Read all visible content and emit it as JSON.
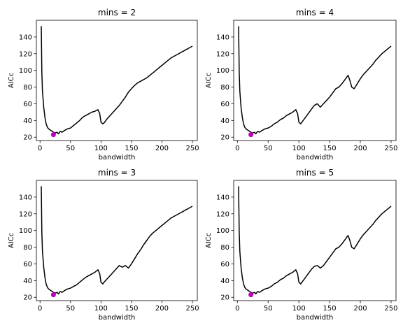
{
  "chart_data": [
    {
      "type": "line",
      "title": "mins = 2",
      "xlabel": "bandwidth",
      "ylabel": "AICc",
      "xlim": [
        -6,
        258
      ],
      "ylim": [
        16,
        160
      ],
      "xticks": [
        0,
        50,
        100,
        150,
        200,
        250
      ],
      "yticks": [
        20,
        40,
        60,
        80,
        100,
        120,
        140
      ],
      "grid": false,
      "series": [
        {
          "color": "#000000",
          "x": [
            2,
            3,
            4,
            6,
            8,
            10,
            12,
            14,
            16,
            18,
            20,
            22,
            25,
            28,
            30,
            33,
            36,
            40,
            45,
            50,
            55,
            60,
            65,
            70,
            75,
            80,
            85,
            90,
            95,
            98,
            100,
            103,
            105,
            110,
            115,
            120,
            125,
            130,
            135,
            140,
            145,
            150,
            155,
            160,
            165,
            170,
            175,
            180,
            185,
            190,
            195,
            200,
            205,
            210,
            215,
            220,
            225,
            230,
            235,
            240,
            245,
            250
          ],
          "y": [
            153,
            98,
            75,
            56,
            44,
            36,
            32,
            30,
            29,
            28,
            27,
            26,
            25,
            26,
            24,
            27,
            26,
            28,
            30,
            31,
            34,
            37,
            40,
            44,
            46,
            48,
            50,
            51,
            53,
            48,
            38,
            36,
            37,
            42,
            46,
            50,
            54,
            58,
            63,
            68,
            74,
            78,
            82,
            85,
            87,
            89,
            91,
            94,
            97,
            100,
            103,
            106,
            109,
            112,
            115,
            117,
            119,
            121,
            123,
            125,
            127,
            129
          ]
        }
      ],
      "markers": [
        {
          "x": 22,
          "y": 23,
          "color": "#bf00bf"
        }
      ]
    },
    {
      "type": "line",
      "title": "mins = 4",
      "xlabel": "bandwidth",
      "ylabel": "AICc",
      "xlim": [
        -6,
        258
      ],
      "ylim": [
        16,
        160
      ],
      "xticks": [
        0,
        50,
        100,
        150,
        200,
        250
      ],
      "yticks": [
        20,
        40,
        60,
        80,
        100,
        120,
        140
      ],
      "grid": false,
      "series": [
        {
          "color": "#000000",
          "x": [
            2,
            3,
            4,
            6,
            8,
            10,
            12,
            14,
            16,
            18,
            20,
            22,
            25,
            28,
            30,
            33,
            36,
            40,
            45,
            50,
            55,
            60,
            65,
            70,
            75,
            80,
            85,
            90,
            95,
            98,
            100,
            103,
            105,
            110,
            115,
            120,
            125,
            130,
            135,
            140,
            145,
            150,
            155,
            160,
            165,
            170,
            175,
            178,
            180,
            183,
            186,
            190,
            195,
            200,
            205,
            210,
            215,
            220,
            225,
            230,
            235,
            240,
            245,
            250
          ],
          "y": [
            153,
            98,
            75,
            56,
            44,
            36,
            32,
            30,
            29,
            28,
            27,
            26,
            25,
            26,
            24,
            27,
            26,
            28,
            30,
            31,
            33,
            36,
            38,
            41,
            43,
            46,
            48,
            50,
            53,
            48,
            38,
            36,
            38,
            43,
            48,
            53,
            58,
            60,
            56,
            60,
            64,
            68,
            73,
            78,
            80,
            84,
            89,
            92,
            94,
            88,
            80,
            78,
            84,
            90,
            95,
            99,
            103,
            107,
            112,
            116,
            120,
            123,
            126,
            129
          ]
        }
      ],
      "markers": [
        {
          "x": 22,
          "y": 23,
          "color": "#bf00bf"
        }
      ]
    },
    {
      "type": "line",
      "title": "mins = 3",
      "xlabel": "bandwidth",
      "ylabel": "AICc",
      "xlim": [
        -6,
        258
      ],
      "ylim": [
        16,
        160
      ],
      "xticks": [
        0,
        50,
        100,
        150,
        200,
        250
      ],
      "yticks": [
        20,
        40,
        60,
        80,
        100,
        120,
        140
      ],
      "grid": false,
      "series": [
        {
          "color": "#000000",
          "x": [
            2,
            3,
            4,
            6,
            8,
            10,
            12,
            14,
            16,
            18,
            20,
            22,
            25,
            28,
            30,
            33,
            36,
            40,
            45,
            50,
            55,
            60,
            65,
            70,
            75,
            80,
            85,
            90,
            95,
            98,
            100,
            103,
            105,
            110,
            115,
            120,
            125,
            130,
            135,
            140,
            145,
            150,
            155,
            160,
            165,
            170,
            175,
            180,
            185,
            190,
            195,
            200,
            205,
            210,
            215,
            220,
            225,
            230,
            235,
            240,
            245,
            250
          ],
          "y": [
            153,
            98,
            75,
            56,
            44,
            36,
            32,
            30,
            29,
            28,
            27,
            26,
            25,
            26,
            24,
            27,
            26,
            28,
            30,
            31,
            33,
            35,
            38,
            41,
            44,
            46,
            48,
            50,
            53,
            48,
            38,
            36,
            38,
            42,
            46,
            50,
            54,
            58,
            56,
            58,
            55,
            60,
            66,
            72,
            77,
            83,
            88,
            93,
            97,
            100,
            103,
            106,
            109,
            112,
            115,
            117,
            119,
            121,
            123,
            125,
            127,
            129
          ]
        }
      ],
      "markers": [
        {
          "x": 22,
          "y": 23,
          "color": "#bf00bf"
        }
      ]
    },
    {
      "type": "line",
      "title": "mins = 5",
      "xlabel": "bandwidth",
      "ylabel": "AICc",
      "xlim": [
        -6,
        258
      ],
      "ylim": [
        16,
        160
      ],
      "xticks": [
        0,
        50,
        100,
        150,
        200,
        250
      ],
      "yticks": [
        20,
        40,
        60,
        80,
        100,
        120,
        140
      ],
      "grid": false,
      "series": [
        {
          "color": "#000000",
          "x": [
            2,
            3,
            4,
            6,
            8,
            10,
            12,
            14,
            16,
            18,
            20,
            22,
            25,
            28,
            30,
            33,
            36,
            40,
            45,
            50,
            55,
            60,
            65,
            70,
            75,
            80,
            85,
            90,
            95,
            98,
            100,
            103,
            105,
            110,
            115,
            120,
            125,
            130,
            135,
            140,
            145,
            150,
            155,
            160,
            165,
            170,
            175,
            178,
            180,
            183,
            186,
            190,
            195,
            200,
            205,
            210,
            215,
            220,
            225,
            230,
            235,
            240,
            245,
            250
          ],
          "y": [
            153,
            98,
            75,
            56,
            44,
            36,
            32,
            30,
            29,
            28,
            27,
            26,
            25,
            26,
            24,
            27,
            26,
            28,
            30,
            31,
            33,
            36,
            38,
            41,
            43,
            46,
            48,
            50,
            53,
            48,
            38,
            36,
            38,
            43,
            48,
            53,
            57,
            58,
            55,
            58,
            63,
            68,
            73,
            78,
            80,
            84,
            89,
            92,
            94,
            88,
            80,
            78,
            84,
            90,
            95,
            99,
            103,
            107,
            112,
            116,
            120,
            123,
            126,
            129
          ]
        }
      ],
      "markers": [
        {
          "x": 22,
          "y": 23,
          "color": "#bf00bf"
        }
      ]
    }
  ]
}
